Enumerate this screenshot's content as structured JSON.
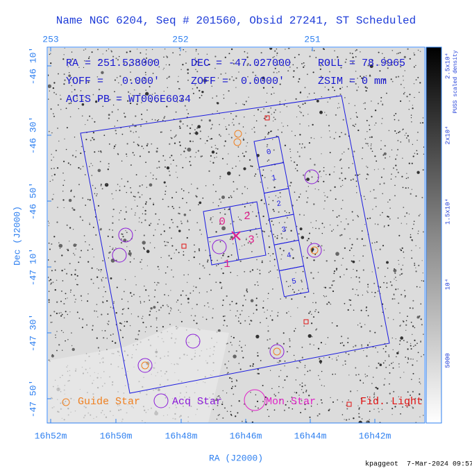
{
  "title": "Name NGC 6204, Seq # 201560, Obsid 27241, ST Scheduled",
  "top_axis": [
    "253",
    "252",
    "251"
  ],
  "left_axis": [
    "-46 10'",
    "-46 30'",
    "-46 50'",
    "-47 10'",
    "-47 30'",
    "-47 50'"
  ],
  "bottom_axis": [
    "16h52m",
    "16h50m",
    "16h48m",
    "16h46m",
    "16h44m",
    "16h42m"
  ],
  "x_label": "RA (J2000)",
  "y_label": "Dec (J2000)",
  "colorbar": {
    "label": "PUSS scaled density",
    "ticks": [
      "2.5x10⁴",
      "2x10⁴",
      "1.5x10⁴",
      "10⁴",
      "5000"
    ]
  },
  "info": [
    [
      "RA = 251.538000",
      "DEC = -47.027000",
      "ROLL = 78.9965"
    ],
    [
      "YOFF =   0.000'",
      "ZOFF =  0.0000'",
      "ZSIM = 0 mm"
    ],
    [
      "ACIS PB = WT006E6034"
    ]
  ],
  "i_chips": [
    "0",
    "2",
    "1",
    "3"
  ],
  "s_chips": [
    "0",
    "1",
    "2",
    "3",
    "4",
    "5"
  ],
  "legend": [
    "Guide Star",
    "Acq Star",
    "Mon Star",
    "Fid. Light"
  ],
  "footer": "kpaggeot  7-Mar-2024 09:57"
}
